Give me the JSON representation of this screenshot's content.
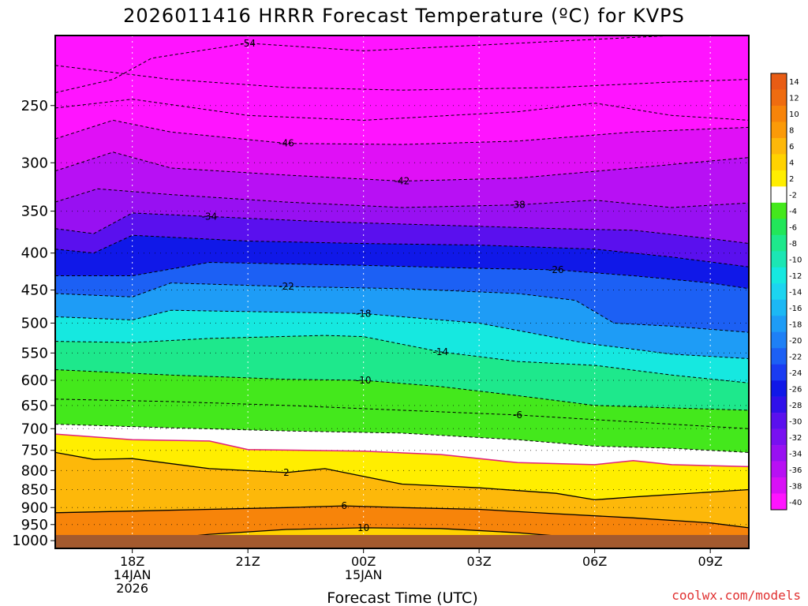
{
  "chart_data": {
    "type": "heatmap",
    "title": "2026011416 HRRR Forecast Temperature (ºC) for KVPS",
    "xlabel": "Forecast Time (UTC)",
    "ylabel": "",
    "credit": "coolwx.com/models",
    "y_axis": {
      "scale": "log-pressure",
      "units": "hPa",
      "range": [
        1025,
        200
      ],
      "ticks": [
        250,
        300,
        350,
        400,
        450,
        500,
        550,
        600,
        650,
        700,
        750,
        800,
        850,
        900,
        950,
        1000
      ]
    },
    "x_axis": {
      "units": "hours since 2026-01-14 16Z",
      "range": [
        0,
        18
      ],
      "ticks": [
        {
          "hour": 2,
          "label": "18Z",
          "sub1": "14JAN",
          "sub2": "2026"
        },
        {
          "hour": 5,
          "label": "21Z",
          "sub1": "",
          "sub2": ""
        },
        {
          "hour": 8,
          "label": "00Z",
          "sub1": "15JAN",
          "sub2": ""
        },
        {
          "hour": 11,
          "label": "03Z",
          "sub1": "",
          "sub2": ""
        },
        {
          "hour": 14,
          "label": "06Z",
          "sub1": "",
          "sub2": ""
        },
        {
          "hour": 17,
          "label": "09Z",
          "sub1": "",
          "sub2": ""
        }
      ]
    },
    "colorbar": {
      "levels": [
        14,
        12,
        10,
        8,
        6,
        4,
        2,
        -2,
        -4,
        -6,
        -8,
        -10,
        -12,
        -14,
        -16,
        -18,
        -20,
        -22,
        -24,
        -26,
        -28,
        -30,
        -32,
        -34,
        -36,
        -38,
        -40
      ],
      "colors": [
        "#e85c14",
        "#ef6c10",
        "#f7840a",
        "#fb9a08",
        "#fdb80a",
        "#ffd200",
        "#ffee00",
        "#ffffff",
        "#44e81c",
        "#22e65a",
        "#1ee88c",
        "#1ce6b4",
        "#16e8e0",
        "#1cd4f0",
        "#1cb8f4",
        "#1e9cf6",
        "#1e80f6",
        "#1c60f4",
        "#1a3cf2",
        "#1018e8",
        "#3010ea",
        "#5a10ee",
        "#7810f0",
        "#9810f2",
        "#b810f4",
        "#d810f6",
        "#ff14ff"
      ]
    },
    "surface_color": "#a45a2e",
    "contours": [
      {
        "label": "-54",
        "pts": [
          [
            0,
            240
          ],
          [
            1.5,
            230
          ],
          [
            2.5,
            215
          ],
          [
            5,
            205
          ],
          [
            8,
            210
          ],
          [
            12,
            205
          ],
          [
            16,
            200
          ],
          [
            18,
            198
          ]
        ]
      },
      {
        "label": "",
        "pts": [
          [
            0,
            220
          ],
          [
            3,
            230
          ],
          [
            6,
            236
          ],
          [
            9,
            238
          ],
          [
            13,
            236
          ],
          [
            16,
            232
          ],
          [
            18,
            230
          ]
        ]
      },
      {
        "label": "",
        "pts": [
          [
            0,
            252
          ],
          [
            2,
            245
          ],
          [
            5,
            258
          ],
          [
            8,
            262
          ],
          [
            12,
            255
          ],
          [
            14,
            248
          ],
          [
            16,
            258
          ],
          [
            18,
            262
          ]
        ]
      },
      {
        "label": "-46",
        "pts": [
          [
            0,
            278
          ],
          [
            1.5,
            262
          ],
          [
            3,
            272
          ],
          [
            6,
            282
          ],
          [
            9,
            283
          ],
          [
            12,
            280
          ],
          [
            15,
            272
          ],
          [
            18,
            268
          ]
        ]
      },
      {
        "label": "-42",
        "pts": [
          [
            0,
            308
          ],
          [
            1.5,
            290
          ],
          [
            3,
            305
          ],
          [
            6,
            312
          ],
          [
            9,
            318
          ],
          [
            12,
            315
          ],
          [
            15,
            305
          ],
          [
            18,
            295
          ]
        ]
      },
      {
        "label": "-38",
        "pts": [
          [
            0,
            340
          ],
          [
            1.1,
            326
          ],
          [
            3,
            332
          ],
          [
            6,
            340
          ],
          [
            9,
            346
          ],
          [
            12,
            343
          ],
          [
            14,
            338
          ],
          [
            16,
            346
          ],
          [
            18,
            341
          ]
        ]
      },
      {
        "label": "-34",
        "pts": [
          [
            0,
            370
          ],
          [
            1,
            376
          ],
          [
            2,
            352
          ],
          [
            4,
            356
          ],
          [
            7,
            362
          ],
          [
            10,
            366
          ],
          [
            13,
            370
          ],
          [
            15,
            372
          ],
          [
            17,
            382
          ],
          [
            18,
            388
          ]
        ]
      },
      {
        "label": "",
        "pts": [
          [
            0,
            395
          ],
          [
            1,
            400
          ],
          [
            2,
            378
          ],
          [
            5,
            385
          ],
          [
            8,
            388
          ],
          [
            11,
            390
          ],
          [
            14,
            395
          ],
          [
            16,
            405
          ],
          [
            18,
            418
          ]
        ]
      },
      {
        "label": "-26",
        "pts": [
          [
            0,
            430
          ],
          [
            2,
            430
          ],
          [
            4,
            412
          ],
          [
            8,
            416
          ],
          [
            11,
            420
          ],
          [
            13,
            422
          ],
          [
            15,
            430
          ],
          [
            17,
            440
          ],
          [
            18,
            448
          ]
        ]
      },
      {
        "label": "-22",
        "pts": [
          [
            0,
            455
          ],
          [
            2,
            460
          ],
          [
            3,
            440
          ],
          [
            6,
            445
          ],
          [
            9,
            448
          ],
          [
            12,
            455
          ],
          [
            13.5,
            465
          ],
          [
            14.5,
            500
          ],
          [
            16,
            505
          ],
          [
            18,
            515
          ]
        ]
      },
      {
        "label": "-18",
        "pts": [
          [
            0,
            490
          ],
          [
            2,
            495
          ],
          [
            3,
            480
          ],
          [
            6,
            483
          ],
          [
            8,
            485
          ],
          [
            10,
            495
          ],
          [
            11,
            500
          ],
          [
            13.5,
            530
          ],
          [
            14,
            535
          ],
          [
            16,
            552
          ],
          [
            18,
            560
          ]
        ]
      },
      {
        "label": "-14",
        "pts": [
          [
            0,
            530
          ],
          [
            2,
            532
          ],
          [
            4,
            525
          ],
          [
            7,
            520
          ],
          [
            8,
            522
          ],
          [
            10,
            548
          ],
          [
            12,
            565
          ],
          [
            14,
            572
          ],
          [
            16,
            590
          ],
          [
            18,
            605
          ]
        ]
      },
      {
        "label": "-10",
        "pts": [
          [
            0,
            580
          ],
          [
            3,
            590
          ],
          [
            6,
            598
          ],
          [
            8,
            600
          ],
          [
            10,
            612
          ],
          [
            12,
            630
          ],
          [
            14,
            650
          ],
          [
            16,
            655
          ],
          [
            18,
            660
          ]
        ]
      },
      {
        "label": "-6",
        "pts": [
          [
            0,
            637
          ],
          [
            3,
            642
          ],
          [
            6,
            650
          ],
          [
            9,
            660
          ],
          [
            12,
            670
          ],
          [
            14,
            680
          ],
          [
            16,
            690
          ],
          [
            18,
            700
          ]
        ]
      },
      {
        "label": "",
        "pts": [
          [
            0,
            690
          ],
          [
            3,
            698
          ],
          [
            6,
            705
          ],
          [
            9,
            710
          ],
          [
            12,
            725
          ],
          [
            14,
            740
          ],
          [
            16,
            745
          ],
          [
            18,
            755
          ]
        ]
      }
    ],
    "solid_contours": [
      {
        "label": "2",
        "pts": [
          [
            0,
            755
          ],
          [
            1,
            772
          ],
          [
            2,
            770
          ],
          [
            4,
            795
          ],
          [
            6,
            805
          ],
          [
            7,
            795
          ],
          [
            8,
            815
          ],
          [
            9,
            835
          ],
          [
            11,
            845
          ],
          [
            13,
            860
          ],
          [
            14,
            878
          ],
          [
            15,
            870
          ],
          [
            18,
            850
          ]
        ]
      },
      {
        "label": "6",
        "pts": [
          [
            0,
            915
          ],
          [
            2,
            910
          ],
          [
            4,
            905
          ],
          [
            6,
            900
          ],
          [
            7.5,
            895
          ],
          [
            9,
            900
          ],
          [
            11,
            905
          ],
          [
            13,
            918
          ],
          [
            15,
            930
          ],
          [
            17,
            945
          ],
          [
            18,
            960
          ]
        ]
      },
      {
        "label": "10",
        "pts": [
          [
            0.5,
            1025
          ],
          [
            2,
            1005
          ],
          [
            4,
            980
          ],
          [
            6,
            965
          ],
          [
            8,
            960
          ],
          [
            10,
            962
          ],
          [
            12,
            975
          ],
          [
            14,
            995
          ],
          [
            15,
            1010
          ],
          [
            15.5,
            1025
          ]
        ]
      }
    ],
    "freezing_line": {
      "label": "",
      "pts": [
        [
          0,
          712
        ],
        [
          2,
          725
        ],
        [
          4,
          728
        ],
        [
          5,
          748
        ],
        [
          8,
          752
        ],
        [
          10,
          760
        ],
        [
          12,
          780
        ],
        [
          14,
          785
        ],
        [
          15,
          775
        ],
        [
          16,
          785
        ],
        [
          18,
          790
        ]
      ]
    }
  }
}
